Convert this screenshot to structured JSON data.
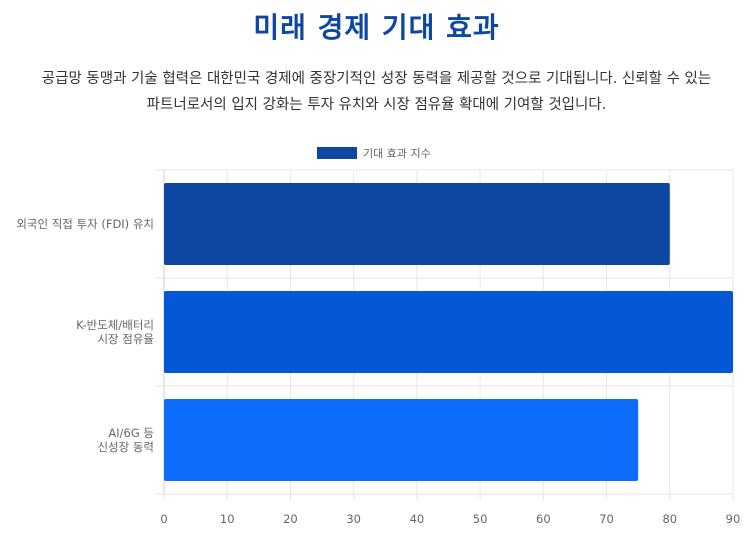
{
  "title": "미래 경제 기대 효과",
  "description": [
    "공급망 동맹과 기술 협력은 대한민국 경제에 중장기적인 성장 동력을 제공할 것으로 기대됩니다. 신뢰할 수 있는",
    "파트너로서의 입지 강화는 투자 유치와 시장 점유율 확대에 기여할 것입니다."
  ],
  "chart_data": {
    "type": "bar",
    "orientation": "horizontal",
    "categories": [
      [
        "외국인 직접 투자 (FDI) 유치"
      ],
      [
        "K-반도체/배터리",
        "시장 점유율"
      ],
      [
        "AI/6G 등",
        "신성장 동력"
      ]
    ],
    "series": [
      {
        "name": "기대 효과 지수",
        "values": [
          80,
          90,
          75
        ]
      }
    ],
    "bar_colors": [
      "#0d47a1",
      "#0558d5",
      "#0d6efd"
    ],
    "xlim": [
      0,
      90
    ],
    "xticks": [
      0,
      10,
      20,
      30,
      40,
      50,
      60,
      70,
      80,
      90
    ],
    "grid": true,
    "legend": "top-center"
  }
}
